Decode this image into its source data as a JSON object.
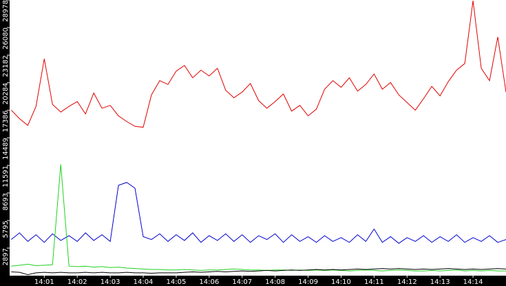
{
  "chart_data": {
    "type": "line",
    "x": [
      0,
      0.25,
      0.5,
      0.75,
      1,
      1.25,
      1.5,
      1.75,
      2,
      2.25,
      2.5,
      2.75,
      3,
      3.25,
      3.5,
      3.75,
      4,
      4.25,
      4.5,
      4.75,
      5,
      5.25,
      5.5,
      5.75,
      6,
      6.25,
      6.5,
      6.75,
      7,
      7.25,
      7.5,
      7.75,
      8,
      8.25,
      8.5,
      8.75,
      9,
      9.25,
      9.5,
      9.75,
      10,
      10.25,
      10.5,
      10.75,
      11,
      11.25,
      11.5,
      11.75,
      12,
      12.25,
      12.5,
      12.75,
      13,
      13.25,
      13.5,
      13.75,
      14,
      14.25,
      14.5,
      14.75,
      15
    ],
    "series": [
      {
        "color": "#e00000",
        "values": [
          17400,
          16500,
          15800,
          17800,
          22800,
          18000,
          17200,
          17800,
          18300,
          17000,
          19200,
          17600,
          17900,
          16800,
          16200,
          15700,
          15600,
          19000,
          20500,
          20100,
          21500,
          22100,
          20800,
          21600,
          21000,
          21800,
          19500,
          18700,
          19300,
          20200,
          18400,
          17600,
          18300,
          19100,
          17300,
          17900,
          16800,
          17500,
          19600,
          20500,
          19800,
          20800,
          19400,
          20100,
          21200,
          19600,
          20300,
          19000,
          18200,
          17400,
          18600,
          19900,
          18900,
          20400,
          21600,
          22300,
          28900,
          21800,
          20500,
          25100,
          19300
        ]
      },
      {
        "color": "#0000d0",
        "values": [
          3800,
          4500,
          3600,
          4300,
          3500,
          4400,
          3700,
          4200,
          3600,
          4500,
          3700,
          4300,
          3600,
          9500,
          9800,
          9200,
          4100,
          3800,
          4400,
          3600,
          4300,
          3700,
          4500,
          3500,
          4200,
          3700,
          4400,
          3600,
          4300,
          3500,
          4200,
          3800,
          4400,
          3500,
          4300,
          3600,
          4100,
          3500,
          4200,
          3600,
          4000,
          3500,
          4300,
          3600,
          4900,
          3500,
          4100,
          3400,
          4000,
          3600,
          4200,
          3500,
          4100,
          3600,
          4300,
          3500,
          4000,
          3600,
          4200,
          3500,
          3800
        ]
      },
      {
        "color": "#20d020",
        "values": [
          1000,
          1100,
          1200,
          1050,
          1100,
          1150,
          11700,
          1000,
          950,
          1000,
          900,
          950,
          850,
          900,
          800,
          750,
          700,
          650,
          650,
          600,
          600,
          650,
          600,
          550,
          600,
          600,
          650,
          700,
          650,
          600,
          600,
          550,
          600,
          600,
          550,
          600,
          550,
          600,
          550,
          600,
          550,
          500,
          550,
          600,
          550,
          500,
          550,
          600,
          550,
          500,
          500,
          550,
          500,
          550,
          600,
          500,
          550,
          500,
          550,
          500,
          500
        ]
      },
      {
        "color": "#000000",
        "values": [
          400,
          350,
          100,
          300,
          350,
          300,
          350,
          300,
          300,
          350,
          300,
          350,
          300,
          300,
          350,
          300,
          300,
          250,
          300,
          300,
          300,
          350,
          400,
          350,
          400,
          450,
          400,
          450,
          500,
          450,
          500,
          550,
          500,
          550,
          600,
          550,
          600,
          650,
          600,
          650,
          600,
          650,
          700,
          650,
          700,
          750,
          700,
          750,
          700,
          650,
          700,
          650,
          700,
          750,
          700,
          650,
          700,
          650,
          700,
          750,
          700
        ]
      }
    ],
    "xlim": [
      -0.05,
      15.0
    ],
    "xticks": [
      {
        "value": 1,
        "label": "14:01"
      },
      {
        "value": 2,
        "label": "14:02"
      },
      {
        "value": 3,
        "label": "14:03"
      },
      {
        "value": 4,
        "label": "14:04"
      },
      {
        "value": 5,
        "label": "14:05"
      },
      {
        "value": 6,
        "label": "14:06"
      },
      {
        "value": 7,
        "label": "14:07"
      },
      {
        "value": 8,
        "label": "14:08"
      },
      {
        "value": 9,
        "label": "14:09"
      },
      {
        "value": 10,
        "label": "14:10"
      },
      {
        "value": 11,
        "label": "14:11"
      },
      {
        "value": 12,
        "label": "14:12"
      },
      {
        "value": 13,
        "label": "14:13"
      },
      {
        "value": 14,
        "label": "14:14"
      }
    ],
    "ylim": [
      0,
      28978
    ],
    "yticks": [
      2897,
      5795,
      8693,
      11591,
      14489,
      17386,
      20284,
      23182,
      26080,
      28978
    ]
  }
}
